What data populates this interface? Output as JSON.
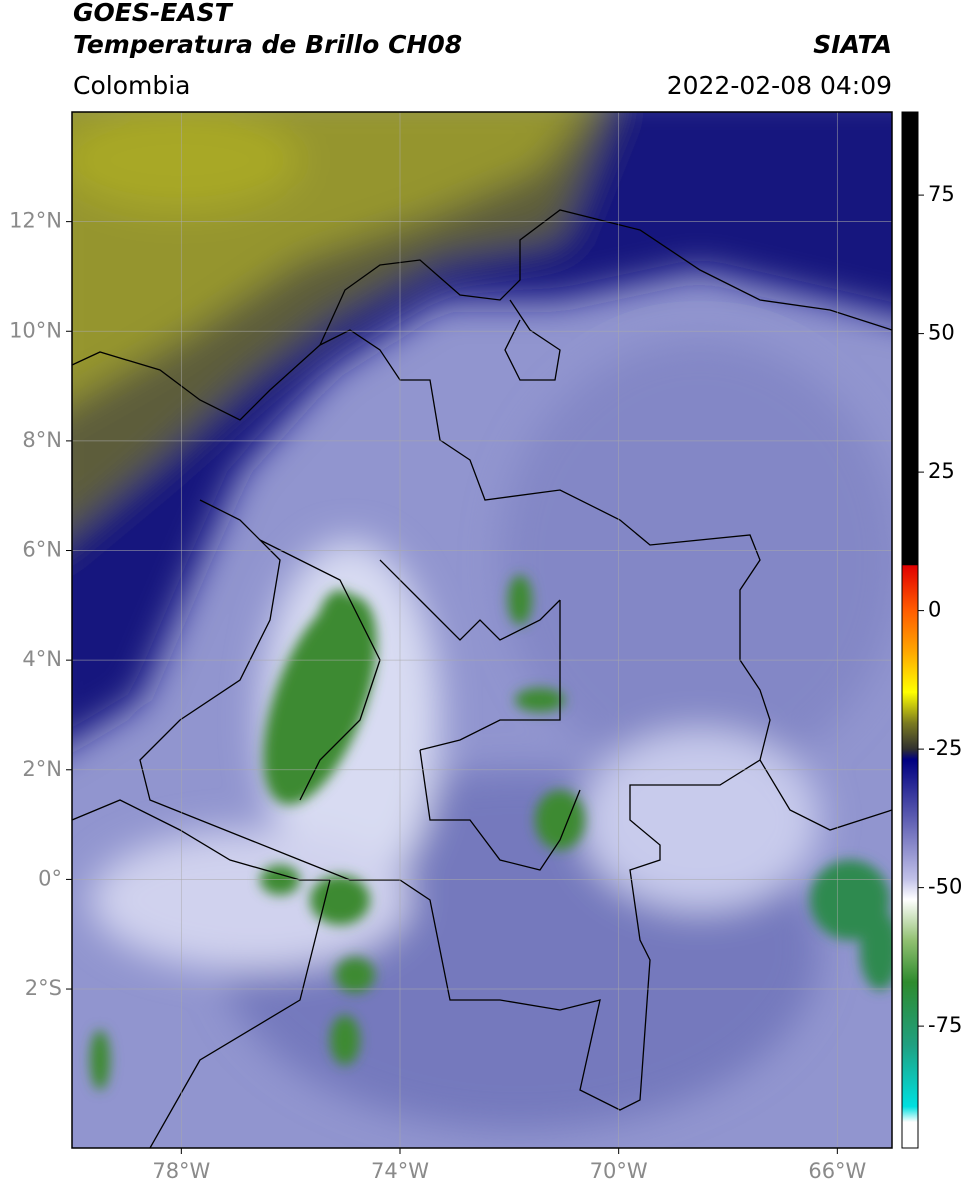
{
  "header": {
    "title": "GOES-EAST",
    "subtitle": "Temperatura de Brillo CH08",
    "source": "SIATA",
    "region": "Colombia",
    "datetime": "2022-02-08 04:09"
  },
  "map": {
    "lon_lim": [
      -80,
      -65
    ],
    "lat_lim": [
      -4.9,
      14
    ],
    "lon_ticks": [
      {
        "value": -78,
        "label": "78°W"
      },
      {
        "value": -74,
        "label": "74°W"
      },
      {
        "value": -70,
        "label": "70°W"
      },
      {
        "value": -66,
        "label": "66°W"
      }
    ],
    "lat_ticks": [
      {
        "value": 12,
        "label": "12°N"
      },
      {
        "value": 10,
        "label": "10°N"
      },
      {
        "value": 8,
        "label": "8°N"
      },
      {
        "value": 6,
        "label": "6°N"
      },
      {
        "value": 4,
        "label": "4°N"
      },
      {
        "value": 2,
        "label": "2°N"
      },
      {
        "value": 0,
        "label": "0°"
      },
      {
        "value": -2,
        "label": "2°S"
      }
    ],
    "grid": true
  },
  "colorbar": {
    "lim": [
      -97,
      90
    ],
    "ticks": [
      75,
      50,
      25,
      0,
      -25,
      -50,
      -75
    ]
  }
}
